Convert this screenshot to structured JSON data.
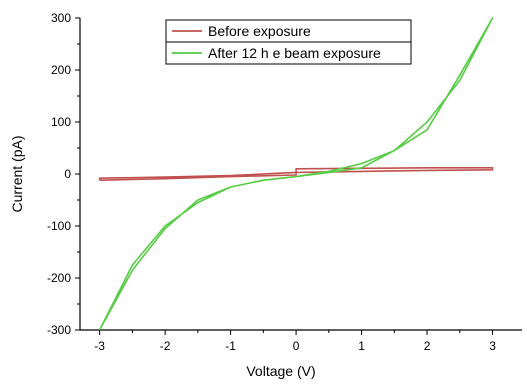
{
  "chart_data": {
    "type": "line",
    "title": "",
    "xlabel": "Voltage (V)",
    "ylabel": "Current (pA)",
    "xlim": [
      -3.3,
      3.45
    ],
    "ylim": [
      -300,
      300
    ],
    "xticks": [
      -3,
      -2,
      -1,
      0,
      1,
      2,
      3
    ],
    "xtick_labels": [
      "-3",
      "-2",
      "-1",
      "0",
      "1",
      "2",
      "3"
    ],
    "yticks": [
      -300,
      -200,
      -100,
      0,
      100,
      200,
      300
    ],
    "ytick_labels": [
      "-300",
      "-200",
      "-100",
      "0",
      "100",
      "200",
      "300"
    ],
    "grid": false,
    "legend_position": "top-center",
    "series": [
      {
        "name": "Before exposure",
        "color": "#c0504d",
        "x": [
          -3,
          -2,
          -1,
          0,
          0,
          1,
          2,
          3,
          3,
          2,
          1,
          0,
          -1,
          -2,
          -3,
          -3
        ],
        "y": [
          -12,
          -9,
          -5,
          -2,
          10,
          11,
          12,
          12,
          8,
          7,
          5,
          3,
          -3,
          -6,
          -8,
          -12
        ]
      },
      {
        "name": "After 12 h e beam exposure",
        "color": "#55cc44",
        "x": [
          -3,
          -2.5,
          -2,
          -1.5,
          -1,
          -0.5,
          0,
          0.5,
          1,
          1.5,
          2,
          2.5,
          3,
          2.5,
          2,
          1.5,
          1,
          0.5,
          0,
          -0.5,
          -1,
          -1.5,
          -2,
          -2.5,
          -3
        ],
        "y": [
          -300,
          -175,
          -100,
          -55,
          -25,
          -12,
          -5,
          3,
          12,
          45,
          100,
          180,
          300,
          190,
          85,
          45,
          20,
          5,
          -5,
          -12,
          -25,
          -50,
          -105,
          -185,
          -300
        ]
      }
    ]
  }
}
